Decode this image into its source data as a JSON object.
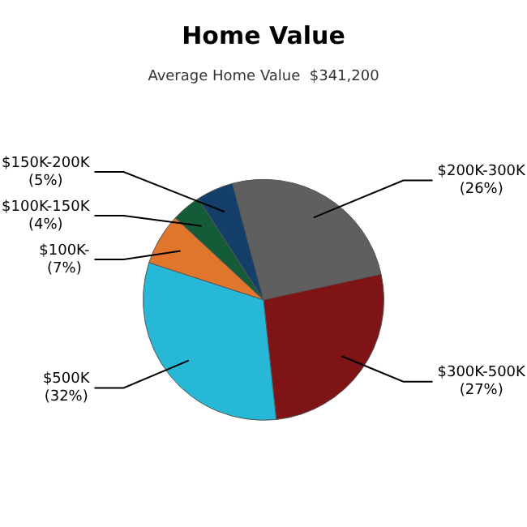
{
  "chart_data": {
    "type": "pie",
    "title": "Home Value",
    "subtitle": "Average Home Value  $341,200",
    "categories": [
      "$200K-300K",
      "$300K-500K",
      "$500K",
      "$100K-",
      "$100K-150K",
      "$150K-200K"
    ],
    "values": [
      26,
      27,
      32,
      7,
      4,
      5
    ],
    "value_labels": [
      "(26%)",
      "(27%)",
      "(32%)",
      "(7%)",
      "(4%)",
      "(5%)"
    ],
    "colors": [
      "#5f5f5f",
      "#7f1416",
      "#26b8d6",
      "#e0762c",
      "#145c38",
      "#143f6b"
    ],
    "legend": false
  }
}
